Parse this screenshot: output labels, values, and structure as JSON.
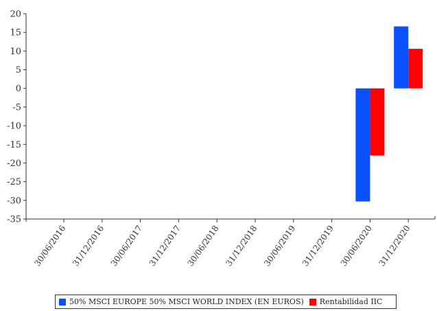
{
  "chart_data": {
    "type": "bar",
    "categories": [
      "30/06/2016",
      "31/12/2016",
      "30/06/2017",
      "31/12/2017",
      "30/06/2018",
      "31/12/2018",
      "30/06/2019",
      "31/12/2019",
      "30/06/2020",
      "31/12/2020"
    ],
    "series": [
      {
        "name": "50% MSCI EUROPE 50% MSCI WORLD INDEX (EN EUROS)",
        "color": "#0a50ff",
        "values": [
          null,
          null,
          null,
          null,
          null,
          null,
          null,
          null,
          -30.3,
          16.6
        ]
      },
      {
        "name": "Rentabilidad IIC",
        "color": "#ff0000",
        "values": [
          null,
          null,
          null,
          null,
          null,
          null,
          null,
          null,
          -18.0,
          10.6
        ]
      }
    ],
    "ylim": [
      -35,
      20
    ],
    "yticks": [
      20,
      15,
      10,
      5,
      0,
      -5,
      -10,
      -15,
      -20,
      -25,
      -30,
      -35
    ],
    "grid": false,
    "legend_position": "bottom"
  }
}
